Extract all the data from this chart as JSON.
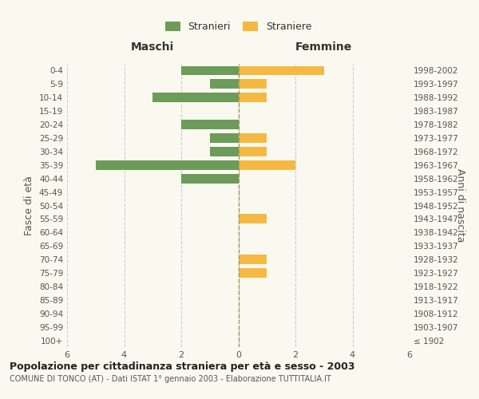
{
  "age_groups": [
    "100+",
    "95-99",
    "90-94",
    "85-89",
    "80-84",
    "75-79",
    "70-74",
    "65-69",
    "60-64",
    "55-59",
    "50-54",
    "45-49",
    "40-44",
    "35-39",
    "30-34",
    "25-29",
    "20-24",
    "15-19",
    "10-14",
    "5-9",
    "0-4"
  ],
  "birth_years": [
    "≤ 1902",
    "1903-1907",
    "1908-1912",
    "1913-1917",
    "1918-1922",
    "1923-1927",
    "1928-1932",
    "1933-1937",
    "1938-1942",
    "1943-1947",
    "1948-1952",
    "1953-1957",
    "1958-1962",
    "1963-1967",
    "1968-1972",
    "1973-1977",
    "1978-1982",
    "1983-1987",
    "1988-1992",
    "1993-1997",
    "1998-2002"
  ],
  "males": [
    0,
    0,
    0,
    0,
    0,
    0,
    0,
    0,
    0,
    0,
    0,
    0,
    -2,
    -5,
    -1,
    -1,
    -2,
    0,
    -3,
    -1,
    -2
  ],
  "females": [
    0,
    0,
    0,
    0,
    0,
    1,
    1,
    0,
    0,
    1,
    0,
    0,
    0,
    2,
    1,
    1,
    0,
    0,
    1,
    1,
    3
  ],
  "male_color": "#6d9b5a",
  "female_color": "#f5b942",
  "grid_color": "#cccccc",
  "background_color": "#f9f9f0",
  "xlim": 6,
  "title": "Popolazione per cittadinanza straniera per età e sesso - 2003",
  "subtitle": "COMUNE DI TONCO (AT) - Dati ISTAT 1° gennaio 2003 - Elaborazione TUTTITALIA.IT",
  "ylabel_left": "Fasce di età",
  "ylabel_right": "Anni di nascita",
  "header_left": "Maschi",
  "header_right": "Femmine",
  "legend_males": "Stranieri",
  "legend_females": "Straniere",
  "bar_height": 0.7
}
